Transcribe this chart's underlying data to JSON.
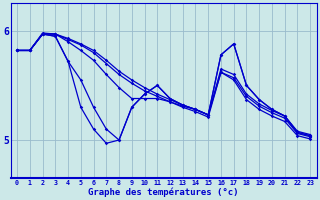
{
  "xlabel": "Graphe des températures (°c)",
  "background_color": "#cce8e8",
  "line_color": "#0000cc",
  "grid_color": "#99bbcc",
  "xlim": [
    -0.5,
    23.5
  ],
  "ylim": [
    4.65,
    6.25
  ],
  "yticks": [
    5,
    6
  ],
  "xticks": [
    0,
    1,
    2,
    3,
    4,
    5,
    6,
    7,
    8,
    9,
    10,
    11,
    12,
    13,
    14,
    15,
    16,
    17,
    18,
    19,
    20,
    21,
    22,
    23
  ],
  "hours": [
    0,
    1,
    2,
    3,
    4,
    5,
    6,
    7,
    8,
    9,
    10,
    11,
    12,
    13,
    14,
    15,
    16,
    17,
    18,
    19,
    20,
    21,
    22,
    23
  ],
  "line1": [
    5.82,
    5.82,
    5.98,
    5.97,
    5.93,
    5.88,
    5.82,
    5.73,
    5.63,
    5.55,
    5.48,
    5.42,
    5.37,
    5.32,
    5.28,
    5.23,
    5.65,
    5.6,
    5.42,
    5.33,
    5.27,
    5.22,
    5.08,
    5.05
  ],
  "line2": [
    5.82,
    5.82,
    5.97,
    5.97,
    5.92,
    5.87,
    5.8,
    5.7,
    5.6,
    5.52,
    5.45,
    5.4,
    5.35,
    5.3,
    5.26,
    5.21,
    5.62,
    5.57,
    5.4,
    5.31,
    5.25,
    5.2,
    5.06,
    5.03
  ],
  "line3": [
    5.82,
    5.82,
    5.97,
    5.97,
    5.9,
    5.82,
    5.73,
    5.6,
    5.48,
    5.38,
    5.38,
    5.38,
    5.35,
    5.31,
    5.28,
    5.23,
    5.62,
    5.55,
    5.37,
    5.28,
    5.22,
    5.17,
    5.04,
    5.01
  ],
  "line4": [
    5.82,
    5.82,
    5.97,
    5.95,
    5.72,
    5.55,
    5.3,
    5.1,
    5.0,
    5.3,
    5.42,
    5.5,
    5.38,
    5.32,
    5.28,
    5.23,
    5.78,
    5.88,
    5.5,
    5.37,
    5.28,
    5.22,
    5.07,
    5.04
  ],
  "line5": [
    5.82,
    5.82,
    5.97,
    5.95,
    5.72,
    5.3,
    5.1,
    4.97,
    5.0,
    5.3,
    5.42,
    5.5,
    5.38,
    5.32,
    5.28,
    5.23,
    5.78,
    5.88,
    5.5,
    5.37,
    5.28,
    5.22,
    5.07,
    5.04
  ]
}
